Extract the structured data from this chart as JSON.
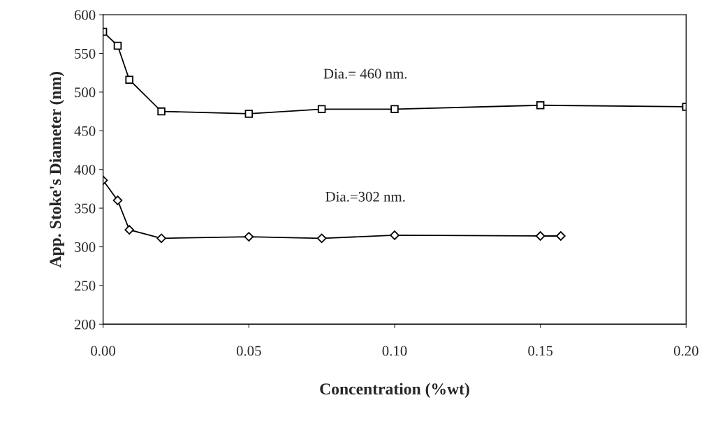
{
  "chart_data": {
    "type": "line",
    "xlabel": "Concentration (%wt)",
    "ylabel": "App. Stoke's Diameter (nm)",
    "xlim": [
      0,
      0.2
    ],
    "xticks": [
      {
        "value": 0,
        "label": "0.00"
      },
      {
        "value": 0.05,
        "label": "0.05"
      },
      {
        "value": 0.1,
        "label": "0.10"
      },
      {
        "value": 0.15,
        "label": "0.15"
      },
      {
        "value": 0.2,
        "label": "0.20"
      }
    ],
    "ylim": [
      200,
      600
    ],
    "yticks": [
      200,
      250,
      300,
      350,
      400,
      450,
      500,
      550,
      600
    ],
    "grid": false,
    "legend": false,
    "series": [
      {
        "color": "#000000",
        "marker": "square",
        "x": [
          0,
          0.005,
          0.009,
          0.02,
          0.05,
          0.075,
          0.1,
          0.15,
          0.2
        ],
        "values": [
          578,
          560,
          516,
          475,
          472,
          478,
          478,
          483,
          481
        ]
      },
      {
        "color": "#000000",
        "marker": "diamond",
        "x": [
          0,
          0.005,
          0.009,
          0.02,
          0.05,
          0.075,
          0.1,
          0.15,
          0.157
        ],
        "values": [
          386,
          360,
          322,
          311,
          313,
          311,
          315,
          314,
          314
        ]
      }
    ],
    "annotations": [
      "Dia.= 460 nm.",
      "Dia.=302 nm."
    ]
  }
}
